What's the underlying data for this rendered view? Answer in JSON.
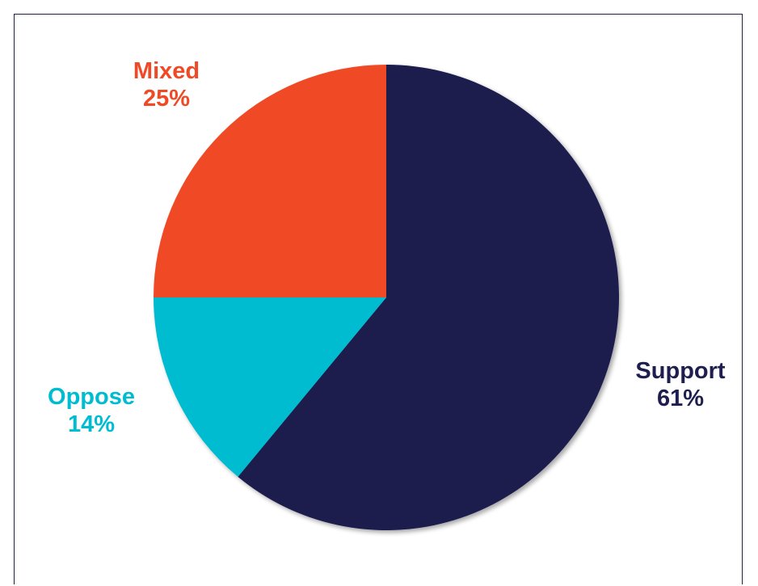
{
  "chart_data": {
    "type": "pie",
    "title": "",
    "slices": [
      {
        "label": "Support",
        "value": 61,
        "value_label": "61%",
        "color": "#1e1f4e"
      },
      {
        "label": "Oppose",
        "value": 14,
        "value_label": "14%",
        "color": "#00bcd0"
      },
      {
        "label": "Mixed",
        "value": 25,
        "value_label": "25%",
        "color": "#ef4a25"
      }
    ],
    "start_angle_deg": 0,
    "direction": "clockwise",
    "labels_outside": true
  }
}
